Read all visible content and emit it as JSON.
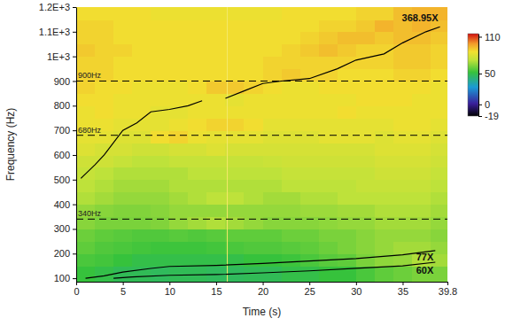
{
  "chart_data": {
    "type": "heatmap",
    "x_label": "Time (s)",
    "y_label": "Frequency (Hz)",
    "xlim": [
      0,
      39.8
    ],
    "xticks": [
      0,
      5,
      10,
      15,
      20,
      25,
      30,
      35,
      39.8
    ],
    "ylim": [
      86,
      1200
    ],
    "yticks": [
      100,
      200,
      300,
      400,
      500,
      600,
      700,
      800,
      900,
      {
        "value": 1000,
        "label": "1E+3"
      },
      {
        "value": 1100,
        "label": "1.1E+3"
      },
      {
        "value": 1200,
        "label": "1.2E+3"
      }
    ],
    "grid": false,
    "series": [
      {
        "name": "368.95X",
        "type": "line",
        "line_style": "solid",
        "color": "#000000",
        "x": [
          0.5,
          2,
          3,
          5,
          6.5,
          8,
          10,
          12,
          13.5,
          14.5,
          16,
          18,
          20,
          22,
          25,
          28,
          30,
          33,
          35,
          37.5,
          39
        ],
        "values": [
          505,
          560,
          600,
          700,
          730,
          775,
          785,
          800,
          820,
          null,
          830,
          860,
          890,
          900,
          910,
          950,
          985,
          1010,
          1055,
          1100,
          1120
        ]
      },
      {
        "name": "77X",
        "type": "line",
        "line_style": "solid",
        "color": "#000000",
        "x": [
          1,
          3,
          5,
          8,
          10,
          15,
          20,
          25,
          30,
          35,
          38.5
        ],
        "values": [
          100,
          110,
          125,
          140,
          148,
          152,
          160,
          170,
          180,
          195,
          212
        ]
      },
      {
        "name": "60X",
        "type": "line",
        "line_style": "solid",
        "color": "#000000",
        "x": [
          4,
          6,
          10,
          15,
          20,
          25,
          30,
          35,
          38.5
        ],
        "values": [
          100,
          105,
          112,
          115,
          122,
          130,
          140,
          150,
          165
        ]
      }
    ],
    "reference_lines": [
      {
        "value": 900,
        "label": "900Hz",
        "line_style": "dashed"
      },
      {
        "value": 680,
        "label": "680Hz",
        "line_style": "dashed"
      },
      {
        "value": 340,
        "label": "340Hz",
        "line_style": "dashed"
      }
    ],
    "cursor": 16.2,
    "heatmap": {
      "x_edges": [
        0,
        2,
        4,
        6,
        8,
        10,
        12,
        14,
        16,
        18,
        20,
        22,
        24,
        26,
        28,
        30,
        32,
        34,
        36,
        38,
        39.8
      ],
      "y_edges": [
        86,
        150,
        200,
        250,
        300,
        350,
        400,
        450,
        500,
        550,
        600,
        650,
        700,
        750,
        800,
        850,
        900,
        950,
        1000,
        1050,
        1100,
        1150,
        1200
      ],
      "cells": [
        [
          52,
          50,
          48,
          48,
          47,
          48,
          48,
          47,
          47,
          48,
          48,
          50,
          50,
          52,
          52,
          55,
          58,
          60,
          62,
          62
        ],
        [
          55,
          54,
          52,
          50,
          50,
          50,
          50,
          50,
          50,
          52,
          52,
          53,
          55,
          57,
          58,
          62,
          65,
          66,
          70,
          68
        ],
        [
          58,
          56,
          55,
          54,
          53,
          53,
          53,
          54,
          55,
          56,
          56,
          57,
          58,
          60,
          62,
          64,
          66,
          68,
          68,
          66
        ],
        [
          60,
          58,
          57,
          56,
          56,
          57,
          56,
          57,
          58,
          58,
          58,
          60,
          60,
          62,
          62,
          64,
          66,
          66,
          66,
          64
        ],
        [
          64,
          62,
          62,
          62,
          63,
          66,
          68,
          70,
          68,
          66,
          64,
          64,
          64,
          65,
          66,
          66,
          68,
          68,
          68,
          66
        ],
        [
          66,
          64,
          63,
          63,
          64,
          66,
          66,
          66,
          66,
          66,
          66,
          66,
          67,
          67,
          68,
          68,
          70,
          70,
          70,
          68
        ],
        [
          70,
          68,
          66,
          66,
          66,
          68,
          70,
          72,
          72,
          70,
          68,
          68,
          70,
          70,
          72,
          72,
          72,
          72,
          72,
          70
        ],
        [
          72,
          70,
          68,
          68,
          68,
          70,
          70,
          70,
          70,
          70,
          70,
          72,
          72,
          72,
          72,
          74,
          74,
          74,
          74,
          72
        ],
        [
          74,
          72,
          70,
          70,
          70,
          70,
          72,
          72,
          72,
          72,
          72,
          74,
          74,
          74,
          74,
          74,
          76,
          76,
          76,
          74
        ],
        [
          76,
          76,
          74,
          72,
          72,
          74,
          74,
          74,
          74,
          74,
          75,
          76,
          76,
          76,
          76,
          76,
          78,
          78,
          78,
          76
        ],
        [
          80,
          78,
          78,
          76,
          76,
          78,
          78,
          80,
          78,
          78,
          78,
          78,
          78,
          78,
          78,
          78,
          80,
          80,
          80,
          78
        ],
        [
          82,
          82,
          80,
          80,
          86,
          88,
          84,
          82,
          82,
          82,
          80,
          80,
          80,
          82,
          82,
          82,
          80,
          82,
          82,
          80
        ],
        [
          84,
          84,
          82,
          82,
          82,
          84,
          86,
          88,
          88,
          86,
          82,
          82,
          82,
          82,
          82,
          82,
          82,
          84,
          84,
          82
        ],
        [
          84,
          86,
          84,
          84,
          82,
          82,
          84,
          84,
          84,
          84,
          84,
          84,
          84,
          84,
          86,
          84,
          84,
          84,
          84,
          84
        ],
        [
          86,
          86,
          84,
          84,
          84,
          84,
          84,
          84,
          82,
          84,
          84,
          84,
          84,
          84,
          84,
          86,
          86,
          86,
          84,
          84
        ],
        [
          88,
          86,
          86,
          84,
          84,
          84,
          86,
          90,
          90,
          88,
          86,
          84,
          84,
          86,
          86,
          86,
          86,
          86,
          86,
          84
        ],
        [
          88,
          88,
          86,
          86,
          86,
          86,
          86,
          86,
          86,
          86,
          88,
          90,
          88,
          88,
          86,
          86,
          86,
          88,
          88,
          86
        ],
        [
          88,
          88,
          86,
          86,
          86,
          86,
          86,
          86,
          86,
          86,
          88,
          88,
          88,
          88,
          88,
          88,
          88,
          90,
          90,
          88
        ],
        [
          90,
          88,
          88,
          86,
          86,
          86,
          86,
          86,
          86,
          86,
          86,
          88,
          90,
          92,
          90,
          88,
          88,
          90,
          90,
          88
        ],
        [
          88,
          88,
          86,
          86,
          86,
          86,
          86,
          86,
          86,
          86,
          86,
          86,
          88,
          90,
          92,
          92,
          90,
          92,
          92,
          90
        ],
        [
          88,
          88,
          86,
          86,
          86,
          86,
          86,
          86,
          86,
          86,
          86,
          86,
          86,
          88,
          88,
          90,
          94,
          92,
          94,
          92
        ],
        [
          86,
          86,
          86,
          86,
          84,
          84,
          84,
          84,
          84,
          84,
          84,
          86,
          86,
          86,
          86,
          88,
          88,
          92,
          94,
          94
        ]
      ],
      "colorbar_range": [
        -19,
        115
      ],
      "colorbar_ticks": [
        110,
        50,
        0,
        -19
      ]
    }
  }
}
